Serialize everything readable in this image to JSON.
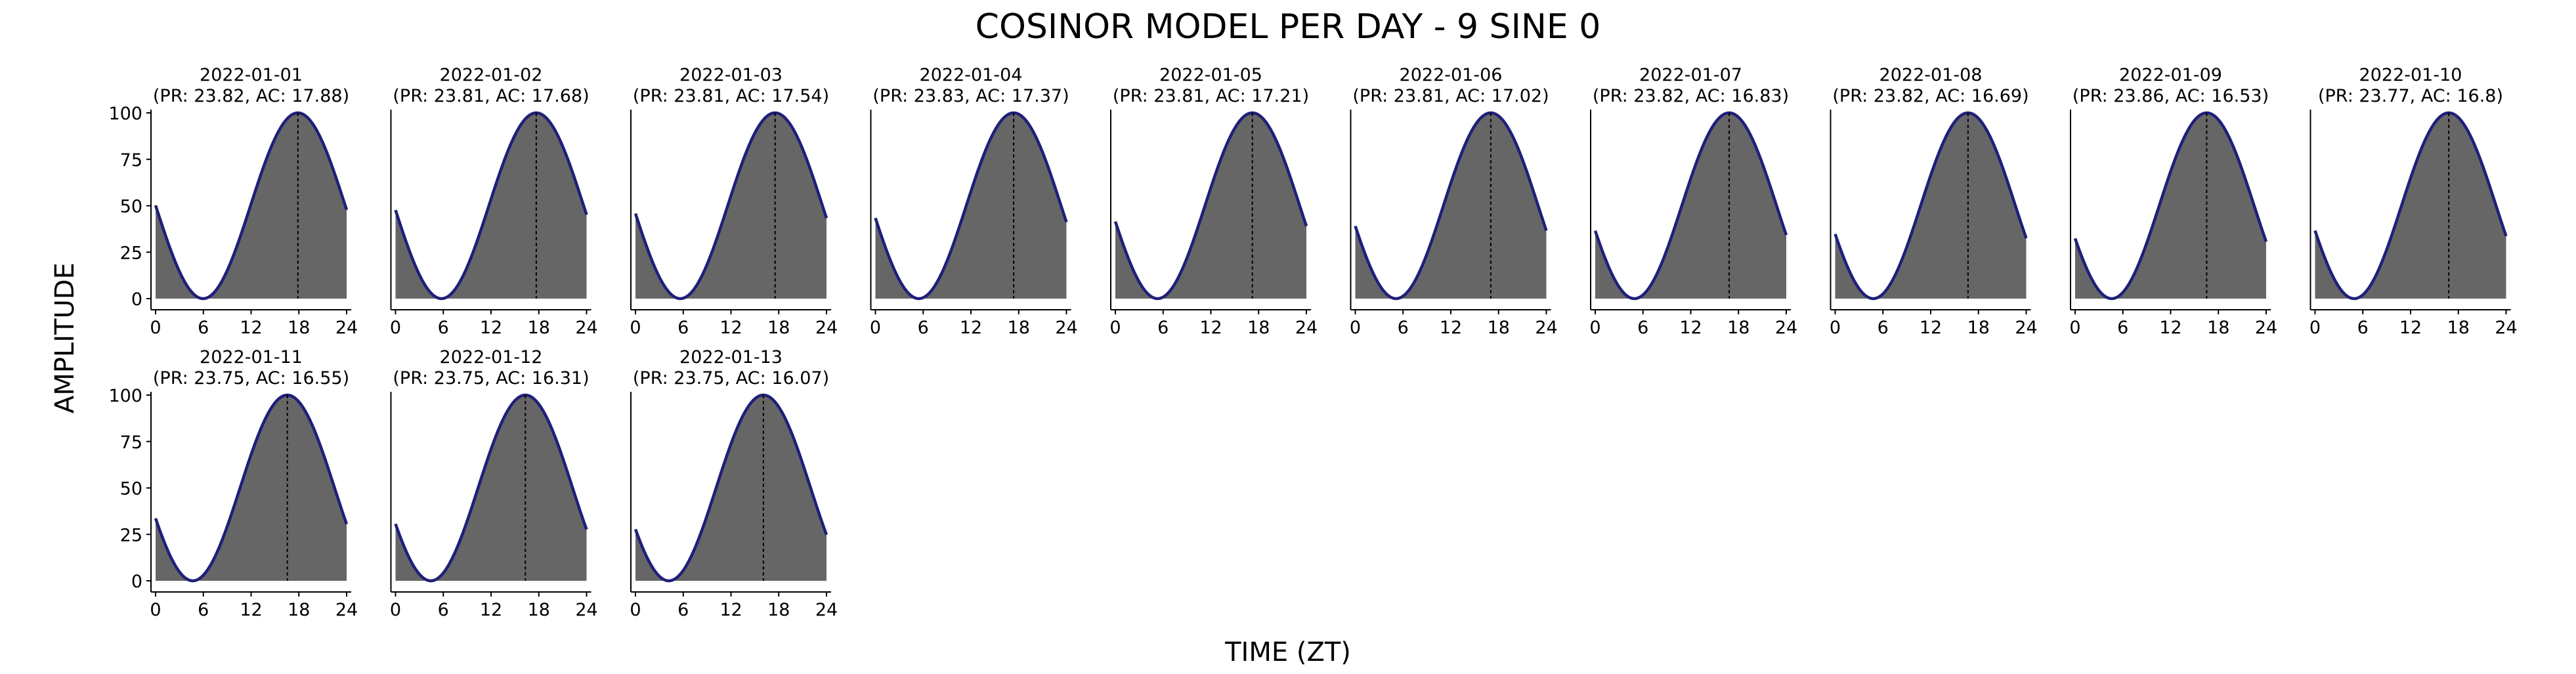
{
  "figure": {
    "title": "COSINOR MODEL PER DAY - 9 SINE 0",
    "xlabel": "TIME (ZT)",
    "ylabel": "AMPLITUDE"
  },
  "colors": {
    "fill": "#666666",
    "curve": "#1f1f7a",
    "acrophase_line": "#000000",
    "axis": "#000000",
    "background": "#ffffff"
  },
  "chart_data": {
    "type": "area",
    "layout": "small-multiples",
    "xlim": [
      0,
      24
    ],
    "ylim": [
      0,
      100
    ],
    "xticks": [
      0,
      6,
      12,
      18,
      24
    ],
    "yticks": [
      0,
      25,
      50,
      75,
      100
    ],
    "grid": false,
    "series": [
      {
        "label": "2022-01-01",
        "subtitle": "(PR: 23.82, AC: 17.88)",
        "period": 23.82,
        "acrophase": 17.88
      },
      {
        "label": "2022-01-02",
        "subtitle": "(PR: 23.81, AC: 17.68)",
        "period": 23.81,
        "acrophase": 17.68
      },
      {
        "label": "2022-01-03",
        "subtitle": "(PR: 23.81, AC: 17.54)",
        "period": 23.81,
        "acrophase": 17.54
      },
      {
        "label": "2022-01-04",
        "subtitle": "(PR: 23.83, AC: 17.37)",
        "period": 23.83,
        "acrophase": 17.37
      },
      {
        "label": "2022-01-05",
        "subtitle": "(PR: 23.81, AC: 17.21)",
        "period": 23.81,
        "acrophase": 17.21
      },
      {
        "label": "2022-01-06",
        "subtitle": "(PR: 23.81, AC: 17.02)",
        "period": 23.81,
        "acrophase": 17.02
      },
      {
        "label": "2022-01-07",
        "subtitle": "(PR: 23.82, AC: 16.83)",
        "period": 23.82,
        "acrophase": 16.83
      },
      {
        "label": "2022-01-08",
        "subtitle": "(PR: 23.82, AC: 16.69)",
        "period": 23.82,
        "acrophase": 16.69
      },
      {
        "label": "2022-01-09",
        "subtitle": "(PR: 23.86, AC: 16.53)",
        "period": 23.86,
        "acrophase": 16.53
      },
      {
        "label": "2022-01-10",
        "subtitle": "(PR: 23.77, AC: 16.8)",
        "period": 23.77,
        "acrophase": 16.8
      },
      {
        "label": "2022-01-11",
        "subtitle": "(PR: 23.75, AC: 16.55)",
        "period": 23.75,
        "acrophase": 16.55
      },
      {
        "label": "2022-01-12",
        "subtitle": "(PR: 23.75, AC: 16.31)",
        "period": 23.75,
        "acrophase": 16.31
      },
      {
        "label": "2022-01-13",
        "subtitle": "(PR: 23.75, AC: 16.07)",
        "period": 23.75,
        "acrophase": 16.07
      }
    ]
  }
}
